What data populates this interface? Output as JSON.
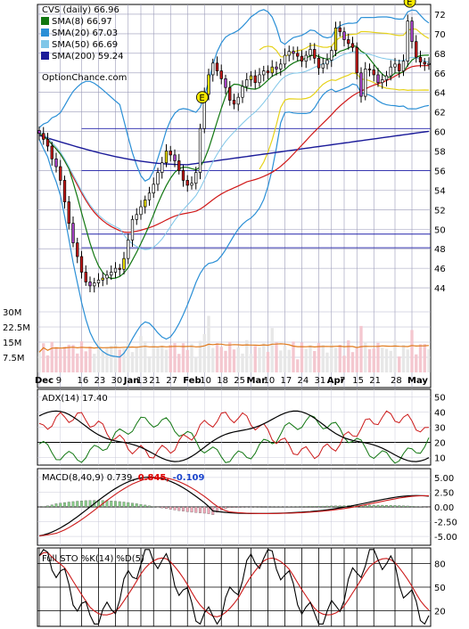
{
  "chart_data": {
    "type": "line",
    "price_panel": {
      "title": "CVS (daily) 66.96",
      "source": "OptionChance.com",
      "legend": [
        {
          "label": "SMA(8) 66.97",
          "color": "#117711"
        },
        {
          "label": "SMA(20) 67.03",
          "color": "#2a8fd6"
        },
        {
          "label": "SMA(50) 66.69",
          "color": "#7fc6e8"
        },
        {
          "label": "SMA(200) 59.24",
          "color": "#1a1a99"
        }
      ],
      "ylim": [
        42,
        73
      ],
      "y_ticks": [
        "72",
        "70",
        "68",
        "66",
        "64",
        "62",
        "60",
        "58",
        "56",
        "54",
        "52",
        "50",
        "48",
        "46",
        "44"
      ],
      "volume_ticks": [
        "30M",
        "22.5M",
        "15M",
        "7.5M"
      ],
      "x_labels": [
        "Dec",
        "9",
        "16",
        "23",
        "30",
        "Jan",
        "13",
        "21",
        "27",
        "Feb",
        "10",
        "18",
        "25",
        "Mar",
        "10",
        "17",
        "24",
        "31",
        "Apr",
        "7",
        "15",
        "21",
        "28",
        "May"
      ],
      "x_label_bold": [
        "Dec",
        "Jan",
        "Feb",
        "Mar",
        "Apr",
        "May"
      ],
      "horizontal_lines": [
        60.3,
        56.0,
        49.5,
        48.1
      ],
      "earnings_label": "E",
      "candles_close": [
        59.8,
        59.2,
        58.5,
        57.2,
        56.4,
        55.0,
        52.8,
        50.6,
        48.6,
        47.2,
        45.6,
        44.6,
        44.2,
        44.5,
        44.8,
        45.0,
        45.3,
        45.6,
        46.0,
        45.9,
        47.0,
        48.9,
        51.0,
        51.5,
        52.3,
        53.0,
        53.7,
        54.6,
        55.8,
        56.8,
        58.0,
        57.6,
        57.0,
        56.0,
        55.0,
        54.5,
        54.7,
        55.8,
        60.3,
        63.8,
        65.8,
        67.0,
        66.2,
        65.4,
        64.5,
        63.2,
        62.8,
        63.5,
        64.6,
        65.3,
        65.7,
        65.0,
        65.8,
        66.2,
        66.0,
        66.6,
        66.4,
        66.9,
        67.8,
        68.2,
        68.0,
        67.7,
        67.2,
        67.8,
        68.4,
        67.5,
        66.5,
        66.9,
        67.3,
        68.3,
        70.6,
        70.2,
        69.4,
        69.0,
        68.6,
        66.0,
        63.6,
        66.4,
        66.3,
        65.8,
        65.0,
        65.3,
        65.7,
        66.6,
        66.9,
        66.2,
        67.2,
        71.3,
        69.2,
        67.6,
        67.1,
        66.9,
        66.96
      ]
    },
    "adx_panel": {
      "label": "ADX(14) 17.40",
      "y_ticks": [
        "50",
        "40",
        "30",
        "20",
        "10"
      ],
      "ylim": [
        5,
        55
      ]
    },
    "macd_panel": {
      "label": "MACD(8,40,9) 0.739,",
      "value1": "0.845,",
      "value1_color": "#dd0000",
      "value2": "-0.109",
      "value2_color": "#1a44cc",
      "y_ticks": [
        "5.00",
        "2.50",
        "0.00",
        "-2.50",
        "-5.00"
      ],
      "ylim": [
        -6.5,
        6.5
      ]
    },
    "sto_panel": {
      "label": "Full STO %K(14) %D(5)",
      "y_ticks": [
        "80",
        "50",
        "20"
      ],
      "ylim": [
        0,
        100
      ]
    }
  }
}
